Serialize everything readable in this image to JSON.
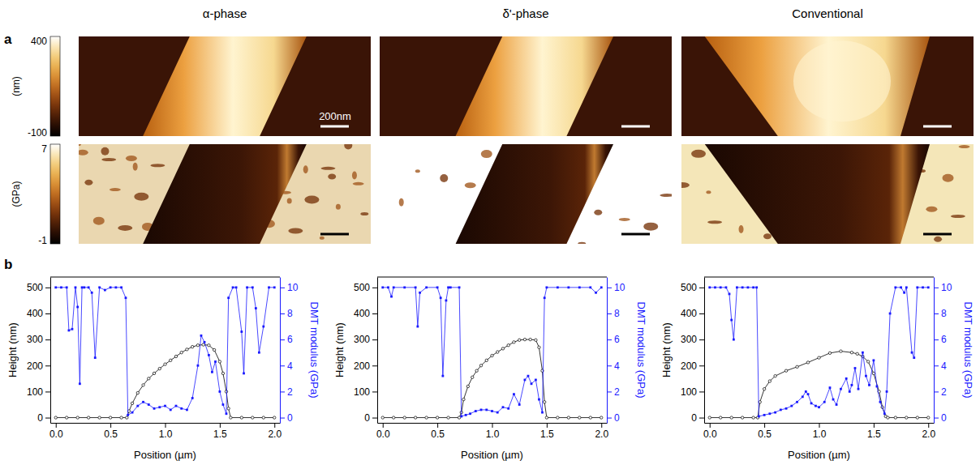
{
  "columns": [
    "α-phase",
    "δ'-phase",
    "Conventional"
  ],
  "panel_labels": [
    "a",
    "b"
  ],
  "scale_bar": "200nm",
  "colorbars": [
    {
      "label": "(nm)",
      "range": [
        -100,
        400
      ],
      "ticks": [
        -100,
        400
      ]
    },
    {
      "label": "(GPa)",
      "range": [
        -1,
        7
      ],
      "ticks": [
        -1,
        7
      ]
    }
  ],
  "chart_data": [
    {
      "type": "line",
      "xlabel": "Position (µm)",
      "ylabel": "Height (nm)",
      "y2label": "DMT modulus (GPa)",
      "xlim": [
        -0.05,
        2.05
      ],
      "xticks": [
        {
          "value": 0,
          "label": "0.0"
        },
        {
          "value": 0.5,
          "label": "0.5"
        },
        {
          "value": 1,
          "label": "1.0"
        },
        {
          "value": 1.5,
          "label": "1.5"
        },
        {
          "value": 2,
          "label": "2.0"
        }
      ],
      "ylim": [
        -20,
        540
      ],
      "yticks": [
        0,
        100,
        200,
        300,
        400,
        500
      ],
      "y2lim": [
        -0.4,
        10.8
      ],
      "y2ticks": [
        0,
        2,
        4,
        6,
        8,
        10
      ],
      "series": [
        {
          "color": "#000000",
          "marker": "circle",
          "line_style": "solid",
          "x": [
            0,
            0.1,
            0.2,
            0.3,
            0.4,
            0.5,
            0.6,
            0.65,
            0.67,
            0.7,
            0.75,
            0.8,
            0.85,
            0.9,
            0.95,
            1.0,
            1.05,
            1.1,
            1.15,
            1.2,
            1.25,
            1.3,
            1.35,
            1.4,
            1.45,
            1.5,
            1.53,
            1.56,
            1.58,
            1.6,
            1.7,
            1.8,
            1.9,
            2.0
          ],
          "values": [
            0,
            0,
            0,
            0,
            0,
            0,
            0,
            0,
            25,
            55,
            95,
            125,
            150,
            170,
            188,
            205,
            220,
            235,
            250,
            262,
            272,
            278,
            280,
            278,
            260,
            215,
            170,
            100,
            35,
            0,
            0,
            0,
            0,
            0
          ]
        },
        {
          "color": "#1a1aff",
          "marker": "square",
          "line_style": "solid",
          "axis": "y2",
          "x": [
            0,
            0.05,
            0.1,
            0.12,
            0.15,
            0.18,
            0.2,
            0.22,
            0.24,
            0.26,
            0.3,
            0.33,
            0.36,
            0.4,
            0.45,
            0.5,
            0.55,
            0.6,
            0.64,
            0.66,
            0.7,
            0.75,
            0.8,
            0.85,
            0.9,
            0.95,
            1.0,
            1.05,
            1.1,
            1.15,
            1.2,
            1.25,
            1.3,
            1.33,
            1.36,
            1.4,
            1.43,
            1.46,
            1.5,
            1.53,
            1.56,
            1.58,
            1.62,
            1.65,
            1.7,
            1.72,
            1.75,
            1.8,
            1.83,
            1.86,
            1.9,
            1.95,
            2.0
          ],
          "values": [
            10,
            10,
            10,
            6.7,
            6.8,
            10,
            8.5,
            2.6,
            10,
            10,
            10,
            9.6,
            4.6,
            10,
            9.8,
            10,
            10,
            10,
            9.2,
            0.2,
            0.4,
            0.9,
            1.2,
            1.0,
            0.7,
            0.8,
            0.9,
            0.6,
            0.9,
            0.7,
            0.6,
            1.5,
            4.0,
            6.3,
            5.8,
            4.8,
            3.5,
            4.3,
            2.0,
            1.0,
            0.3,
            9.2,
            10,
            10,
            6.6,
            3.4,
            10,
            10,
            8.4,
            5.0,
            7.0,
            10,
            10
          ]
        }
      ]
    },
    {
      "type": "line",
      "xlabel": "Position (µm)",
      "ylabel": "Height (nm)",
      "y2label": "DMT modulus (GPa)",
      "xlim": [
        -0.05,
        2.05
      ],
      "xticks": [
        {
          "value": 0,
          "label": "0.0"
        },
        {
          "value": 0.5,
          "label": "0.5"
        },
        {
          "value": 1,
          "label": "1.0"
        },
        {
          "value": 1.5,
          "label": "1.5"
        },
        {
          "value": 2,
          "label": "2.0"
        }
      ],
      "ylim": [
        -20,
        540
      ],
      "yticks": [
        0,
        100,
        200,
        300,
        400,
        500
      ],
      "y2lim": [
        -0.4,
        10.8
      ],
      "y2ticks": [
        0,
        2,
        4,
        6,
        8,
        10
      ],
      "series": [
        {
          "color": "#000000",
          "marker": "circle",
          "line_style": "solid",
          "x": [
            0,
            0.1,
            0.2,
            0.3,
            0.4,
            0.5,
            0.6,
            0.7,
            0.72,
            0.74,
            0.78,
            0.82,
            0.86,
            0.9,
            0.95,
            1.0,
            1.05,
            1.1,
            1.15,
            1.2,
            1.25,
            1.3,
            1.35,
            1.4,
            1.43,
            1.46,
            1.48,
            1.5,
            1.6,
            1.7,
            1.8,
            1.9,
            2.0
          ],
          "values": [
            0,
            0,
            0,
            0,
            0,
            0,
            0,
            0,
            20,
            70,
            120,
            155,
            180,
            200,
            220,
            238,
            252,
            265,
            278,
            290,
            298,
            300,
            300,
            298,
            270,
            180,
            60,
            0,
            0,
            0,
            0,
            0,
            0
          ]
        },
        {
          "color": "#1a1aff",
          "marker": "square",
          "line_style": "solid",
          "axis": "y2",
          "x": [
            0,
            0.05,
            0.08,
            0.1,
            0.2,
            0.3,
            0.32,
            0.34,
            0.4,
            0.5,
            0.53,
            0.55,
            0.58,
            0.6,
            0.62,
            0.7,
            0.72,
            0.76,
            0.8,
            0.85,
            0.9,
            0.95,
            1.0,
            1.05,
            1.1,
            1.15,
            1.2,
            1.25,
            1.3,
            1.33,
            1.36,
            1.4,
            1.43,
            1.46,
            1.48,
            1.5,
            1.6,
            1.7,
            1.8,
            1.9,
            1.95,
            2.0
          ],
          "values": [
            10,
            10,
            9.3,
            10,
            10,
            10,
            7.0,
            9.6,
            10,
            10,
            9.2,
            3.2,
            9.0,
            10,
            10,
            10,
            0.1,
            0.2,
            0.3,
            0.5,
            0.6,
            0.6,
            0.5,
            0.4,
            0.8,
            0.7,
            1.8,
            1.0,
            2.9,
            3.2,
            2.6,
            2.9,
            1.4,
            0.4,
            9.2,
            10,
            10,
            10,
            10,
            10,
            9.6,
            10
          ]
        }
      ]
    },
    {
      "type": "line",
      "xlabel": "Position (µm)",
      "ylabel": "Height (nm)",
      "y2label": "DMT modulus (GPa)",
      "xlim": [
        -0.05,
        2.05
      ],
      "xticks": [
        {
          "value": 0,
          "label": "0.0"
        },
        {
          "value": 0.5,
          "label": "0.5"
        },
        {
          "value": 1,
          "label": "1.0"
        },
        {
          "value": 1.5,
          "label": "1.5"
        },
        {
          "value": 2,
          "label": "2.0"
        }
      ],
      "ylim": [
        -20,
        540
      ],
      "yticks": [
        0,
        100,
        200,
        300,
        400,
        500
      ],
      "y2lim": [
        -0.4,
        10.8
      ],
      "y2ticks": [
        0,
        2,
        4,
        6,
        8,
        10
      ],
      "series": [
        {
          "color": "#000000",
          "marker": "circle",
          "line_style": "solid",
          "x": [
            0,
            0.1,
            0.2,
            0.3,
            0.4,
            0.44,
            0.46,
            0.5,
            0.55,
            0.6,
            0.7,
            0.8,
            0.9,
            1.0,
            1.1,
            1.2,
            1.3,
            1.35,
            1.4,
            1.45,
            1.5,
            1.55,
            1.58,
            1.61,
            1.63,
            1.7,
            1.8,
            1.9,
            2.0
          ],
          "values": [
            0,
            0,
            0,
            0,
            0,
            0,
            60,
            110,
            140,
            160,
            180,
            195,
            212,
            230,
            248,
            255,
            250,
            245,
            235,
            215,
            170,
            100,
            40,
            5,
            0,
            0,
            0,
            0,
            0
          ]
        },
        {
          "color": "#1a1aff",
          "marker": "square",
          "line_style": "solid",
          "axis": "y2",
          "x": [
            0,
            0.05,
            0.1,
            0.15,
            0.18,
            0.2,
            0.22,
            0.25,
            0.3,
            0.35,
            0.4,
            0.43,
            0.45,
            0.5,
            0.55,
            0.6,
            0.65,
            0.7,
            0.75,
            0.8,
            0.85,
            0.88,
            0.9,
            0.93,
            0.97,
            1.0,
            1.05,
            1.1,
            1.13,
            1.16,
            1.2,
            1.25,
            1.28,
            1.3,
            1.33,
            1.36,
            1.4,
            1.43,
            1.46,
            1.5,
            1.53,
            1.56,
            1.6,
            1.62,
            1.65,
            1.7,
            1.75,
            1.78,
            1.8,
            1.85,
            1.87,
            1.9,
            1.95,
            2.0
          ],
          "values": [
            10,
            10,
            10,
            10,
            9.5,
            7.5,
            6.0,
            10,
            10,
            10,
            10,
            10,
            0.1,
            0.2,
            0.3,
            0.4,
            0.6,
            0.7,
            0.9,
            1.2,
            1.6,
            2.0,
            1.8,
            1.1,
            0.9,
            0.8,
            1.2,
            2.3,
            1.4,
            1.0,
            2.2,
            3.0,
            2.0,
            2.5,
            3.8,
            2.2,
            5.0,
            3.2,
            2.5,
            4.4,
            2.4,
            1.2,
            0.3,
            2.0,
            8.0,
            10,
            10,
            9.6,
            10,
            5.0,
            4.6,
            10,
            10,
            10
          ]
        }
      ]
    }
  ]
}
